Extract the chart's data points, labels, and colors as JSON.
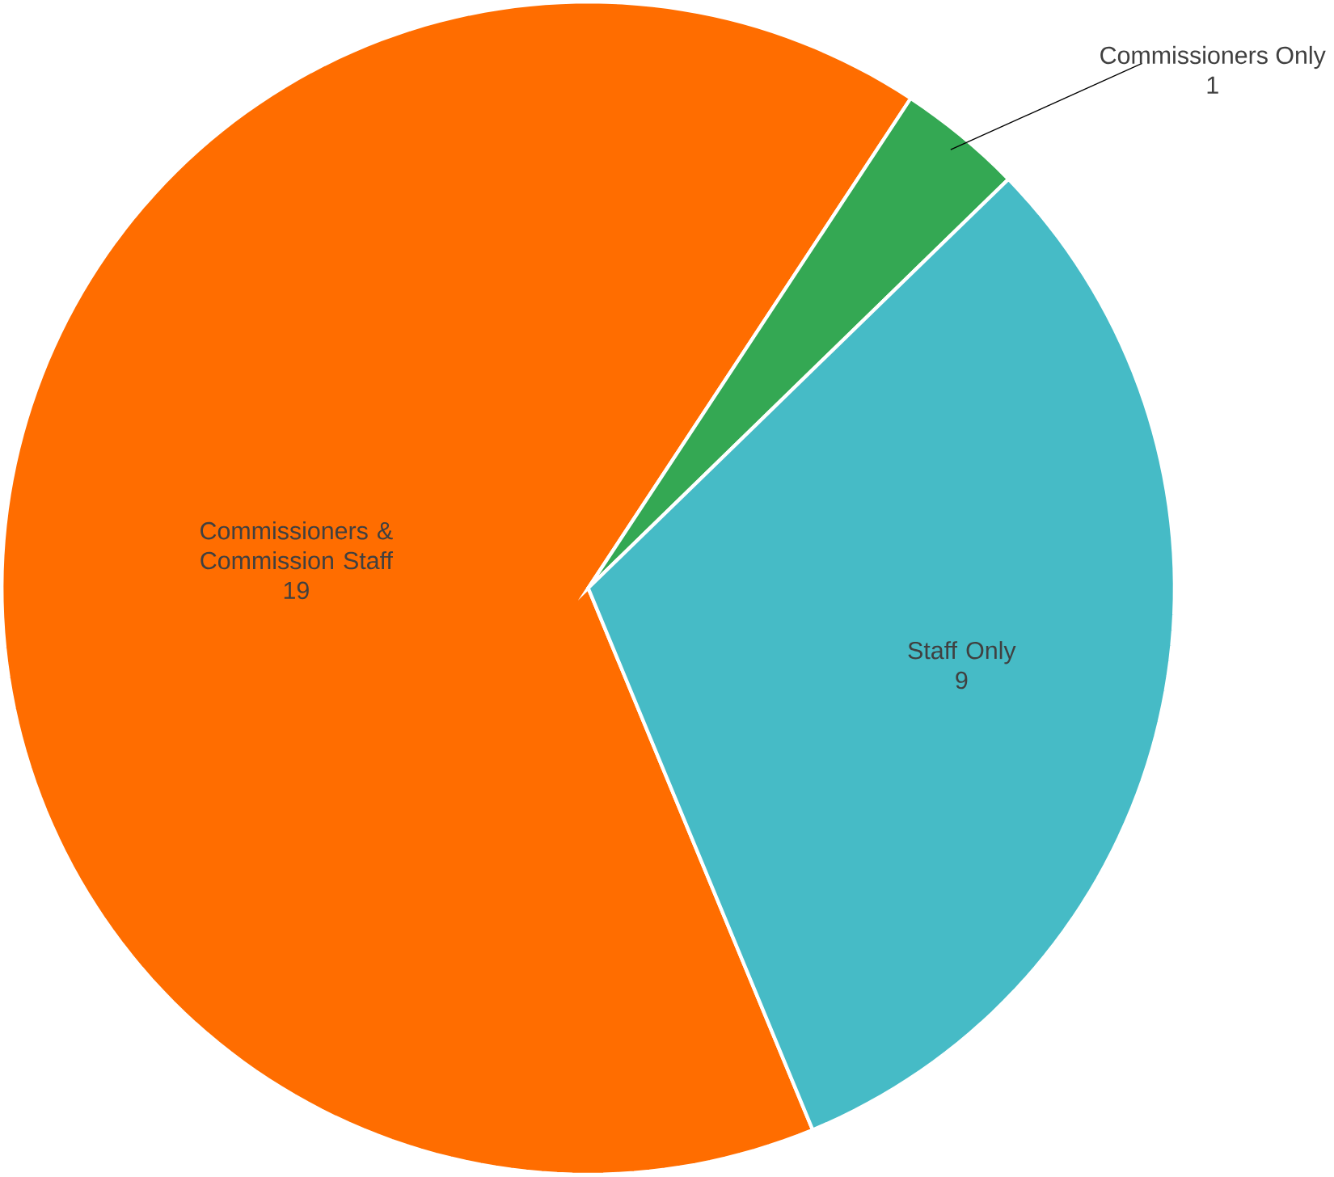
{
  "chart_data": {
    "type": "pie",
    "categories": [
      "Commissioners & Commission Staff",
      "Commissioners Only",
      "Staff Only"
    ],
    "values": [
      19,
      1,
      9
    ],
    "colors": [
      "#ff6d00",
      "#34a853",
      "#46bbc6"
    ],
    "data_labels": true
  }
}
